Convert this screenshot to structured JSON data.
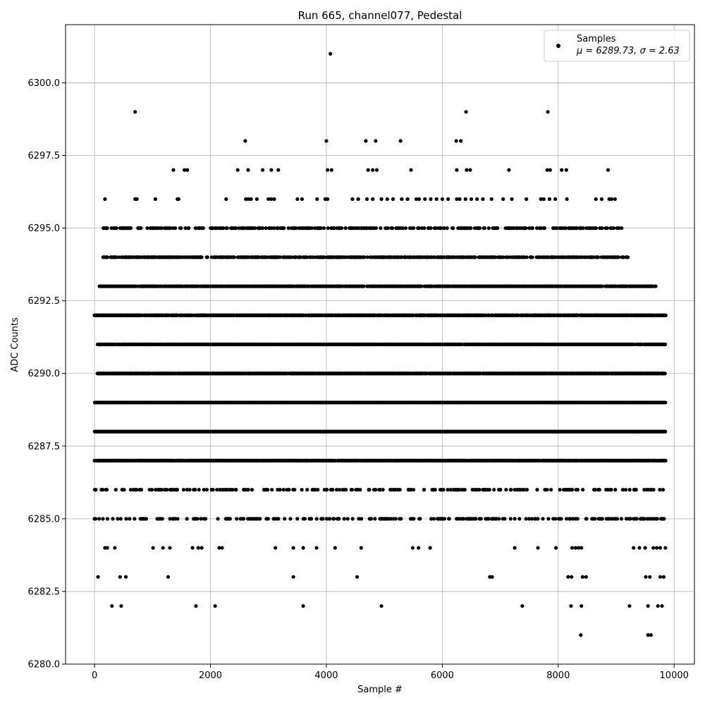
{
  "chart_data": {
    "type": "scatter",
    "title": "Run 665, channel077, Pedestal",
    "xlabel": "Sample #",
    "ylabel": "ADC Counts",
    "xlim": [
      -500,
      10350
    ],
    "ylim": [
      6280.0,
      6302.0
    ],
    "xticks": [
      0,
      2000,
      4000,
      6000,
      8000,
      10000
    ],
    "xtick_labels": [
      "0",
      "2000",
      "4000",
      "6000",
      "8000",
      "10000"
    ],
    "yticks": [
      6280.0,
      6282.5,
      6285.0,
      6287.5,
      6290.0,
      6292.5,
      6295.0,
      6297.5,
      6300.0
    ],
    "ytick_labels": [
      "6280.0",
      "6282.5",
      "6285.0",
      "6287.5",
      "6290.0",
      "6292.5",
      "6295.0",
      "6297.5",
      "6300.0"
    ],
    "grid": true,
    "legend_position": "top-right",
    "marker_color": "#000000",
    "series": [
      {
        "name": "Samples",
        "legend_label": "Samples",
        "legend_stats": "μ = 6289.73, σ = 2.63",
        "n_samples": 9840,
        "levels": [
          {
            "y": 6281,
            "x": [
              8390,
              9550,
              9600
            ]
          },
          {
            "y": 6282,
            "x": [
              300,
              460,
              1750,
              2080,
              3600,
              4950,
              7380,
              8220,
              8400,
              9230,
              9550,
              9720,
              9790
            ]
          },
          {
            "y": 6283,
            "x": [
              60,
              440,
              540,
              1270,
              3430,
              4530,
              6820,
              6860,
              8170,
              8230,
              8420,
              8480,
              9510,
              9580,
              9760,
              9820
            ]
          },
          {
            "y": 6284,
            "x": [
              180,
              220,
              350,
              1010,
              1180,
              1300,
              1690,
              1790,
              1850,
              2150,
              2200,
              3120,
              3430,
              3600,
              3830,
              4150,
              4600,
              5490,
              5590,
              5790,
              7250,
              7650,
              7960,
              8240,
              8300,
              8350,
              8400,
              9300,
              9400,
              9500,
              9640,
              9700,
              9760,
              9850
            ]
          },
          {
            "y": 6293,
            "x": []
          },
          {
            "y": 6294,
            "x": []
          },
          {
            "y": 6295,
            "x": []
          },
          {
            "y": 6296,
            "x": [
              180,
              700,
              730,
              1050,
              1430,
              1450,
              2270,
              2610,
              2650,
              2700,
              2800,
              3000,
              3050,
              3100,
              3500,
              3580,
              3840,
              3980,
              4020,
              4450,
              4550,
              4700,
              4800,
              4950,
              5050,
              5150,
              5300,
              5400,
              5550,
              5600,
              5700,
              5800,
              5900,
              6000,
              6100,
              6250,
              6300,
              6400,
              6500,
              6600,
              6700,
              6850,
              7050,
              7200,
              7450,
              7700,
              7750,
              7850,
              7950,
              8150,
              8650,
              8750,
              8880,
              8920,
              8980
            ]
          },
          {
            "y": 6297,
            "x": [
              1360,
              1550,
              1600,
              2470,
              2650,
              2900,
              3050,
              3170,
              4020,
              4090,
              4720,
              4800,
              4870,
              5460,
              6250,
              6420,
              6480,
              7150,
              7810,
              7860,
              8060,
              8140,
              8860
            ]
          },
          {
            "y": 6298,
            "x": [
              2600,
              4000,
              4680,
              4850,
              5280,
              6240,
              6320
            ]
          },
          {
            "y": 6299,
            "x": [
              700,
              6410,
              7820
            ]
          },
          {
            "y": 6301,
            "x": [
              4070
            ]
          }
        ],
        "dense_bands": [
          {
            "y": 6285,
            "from": 0,
            "to": 9850,
            "density": 0.2
          },
          {
            "y": 6286,
            "from": 0,
            "to": 9850,
            "density": 0.18
          },
          {
            "y": 6287,
            "from": 0,
            "to": 9850,
            "density": 0.9
          },
          {
            "y": 6288,
            "from": 0,
            "to": 9850,
            "density": 1.0
          },
          {
            "y": 6289,
            "from": 0,
            "to": 9850,
            "density": 1.0
          },
          {
            "y": 6290,
            "from": 50,
            "to": 9850,
            "density": 0.9
          },
          {
            "y": 6291,
            "from": 50,
            "to": 9850,
            "density": 0.85
          },
          {
            "y": 6292,
            "from": 0,
            "to": 9850,
            "density": 0.8
          },
          {
            "y": 6293,
            "from": 80,
            "to": 9680,
            "density": 0.75
          },
          {
            "y": 6294,
            "from": 150,
            "to": 9200,
            "density": 0.55
          },
          {
            "y": 6295,
            "from": 150,
            "to": 9100,
            "density": 0.35
          }
        ]
      }
    ]
  }
}
